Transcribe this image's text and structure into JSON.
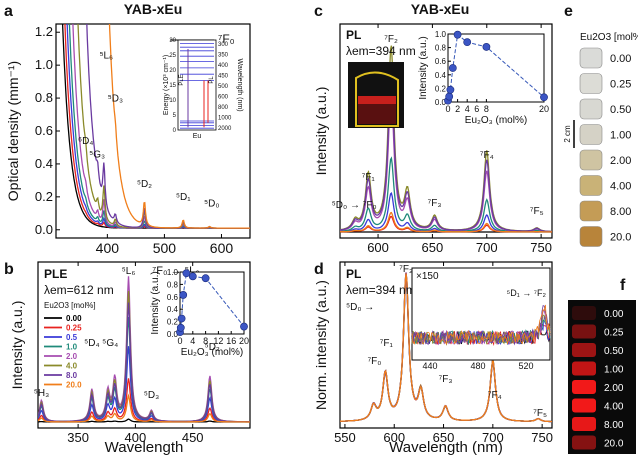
{
  "figure": {
    "material_left": "YAB-xEu",
    "material_right": "YAB-xEu",
    "x_axis_label_left": "Wavelength",
    "x_axis_label_right": "Wavelength (nm)",
    "inset_label_conc_axis": "Eu2O3 (mol%)",
    "panel_e_header": "Eu2O3 [mol%]",
    "panel_e_scale": "2 cm",
    "photo_labels": [
      "0.00",
      "0.25",
      "0.50",
      "1.00",
      "2.00",
      "4.00",
      "8.00",
      "20.0"
    ]
  },
  "panels": {
    "a": {
      "letter": "a"
    },
    "b": {
      "letter": "b",
      "mode": "PLE",
      "lambda_label": "λem=612 nm",
      "legend_title": "Eu2O3 [mol%]"
    },
    "c": {
      "letter": "c",
      "mode": "PL",
      "lambda_label": "λem=394 nm"
    },
    "d": {
      "letter": "d",
      "mode": "PL",
      "lambda_label": "λem=394 nm",
      "zoom_label": "×150"
    },
    "e": {
      "letter": "e"
    },
    "f": {
      "letter": "f"
    }
  },
  "chart_data": [
    {
      "id": "a",
      "type": "line",
      "xlabel": "",
      "ylabel": "Optical density (mm⁻¹)",
      "xlim": [
        310,
        650
      ],
      "ylim": [
        -0.05,
        1.25
      ],
      "xticks": [
        400,
        500,
        600
      ],
      "yticks": [
        0.0,
        0.2,
        0.4,
        0.6,
        0.8,
        1.0,
        1.2
      ],
      "series_colors": [
        "#000000",
        "#e8231f",
        "#3a3ad8",
        "#1f8a7a",
        "#a64cb0",
        "#8a8a2a",
        "#6a3aa0",
        "#f07e1a"
      ],
      "concentrations": [
        "0.00",
        "0.25",
        "0.5",
        "1.0",
        "2.0",
        "4.0",
        "8.0",
        "20.0"
      ],
      "edge_wavelength": [
        318,
        322,
        326,
        330,
        336,
        345,
        360,
        400
      ],
      "peaks": [
        {
          "wavelength": 362,
          "label": "⁶D₄"
        },
        {
          "wavelength": 383,
          "label": "⁵G₃"
        },
        {
          "wavelength": 394,
          "label": "⁵L₆"
        },
        {
          "wavelength": 414,
          "label": "⁵D₃"
        },
        {
          "wavelength": 465,
          "label": "⁵D₂"
        },
        {
          "wavelength": 533,
          "label": "⁵D₁"
        },
        {
          "wavelength": 579,
          "label": "⁵D₀"
        }
      ],
      "annotation": "⁷F₀",
      "inset": {
        "left_axis": "Energy (×10³ cm⁻¹)",
        "right_axis": "Wavelength (nm)",
        "side_labels": [
          "PLE",
          "PL"
        ],
        "ion": "Eu",
        "left_ticks": [
          "0",
          "5",
          "10",
          "15",
          "20",
          "25",
          "30"
        ],
        "right_ticks": [
          "300",
          "350",
          "400",
          "450",
          "500",
          "600",
          "800",
          "1000",
          "2000"
        ]
      }
    },
    {
      "id": "b",
      "type": "line",
      "xlabel": "Wavelength",
      "ylabel": "Intensity (a.u.)",
      "xlim": [
        315,
        500
      ],
      "xticks": [
        350,
        400,
        450
      ],
      "legend": [
        "0.00",
        "0.25",
        "0.5",
        "1.0",
        "2.0",
        "4.0",
        "8.0",
        "20.0"
      ],
      "series_colors": [
        "#000000",
        "#e8231f",
        "#3a3ad8",
        "#1f8a7a",
        "#a64cb0",
        "#8a8a2a",
        "#6a3aa0",
        "#f07e1a"
      ],
      "scale_factors": [
        0.02,
        0.3,
        0.52,
        0.72,
        1.0,
        0.9,
        0.82,
        0.18
      ],
      "peaks": [
        {
          "wavelength": 318,
          "label": "⁵H₃",
          "rel": 0.15
        },
        {
          "wavelength": 362,
          "label": "⁵D₄",
          "rel": 0.22
        },
        {
          "wavelength": 376,
          "label": "⁵G₄",
          "rel": 0.2
        },
        {
          "wavelength": 382,
          "label": "",
          "rel": 0.28
        },
        {
          "wavelength": 394,
          "label": "⁵L₆",
          "rel": 1.0
        },
        {
          "wavelength": 414,
          "label": "⁵D₃",
          "rel": 0.07
        },
        {
          "wavelength": 465,
          "label": "⁵D₂",
          "rel": 0.32
        }
      ],
      "annotation": "⁷F₀ → ⁵L₆",
      "inset": {
        "x": [
          0,
          0.25,
          0.5,
          1,
          2,
          4,
          8,
          20
        ],
        "y": [
          0.03,
          0.1,
          0.25,
          0.63,
          0.98,
          0.93,
          0.9,
          0.12
        ],
        "xlabel": "Eu₂O₃ (mol%)",
        "ylabel": "Intensity (a.u.)",
        "xlim": [
          0,
          20
        ],
        "ylim": [
          0,
          1.0
        ],
        "xticks": [
          0,
          4,
          8,
          12,
          16,
          20
        ],
        "yticks": [
          0.0,
          0.2,
          0.4,
          0.6,
          0.8,
          1.0
        ]
      }
    },
    {
      "id": "c",
      "type": "line",
      "xlabel": "",
      "ylabel": "Intensity (a.u.)",
      "xlim": [
        565,
        760
      ],
      "xticks": [
        600,
        650,
        700,
        750
      ],
      "series_colors": [
        "#000000",
        "#e8231f",
        "#3a3ad8",
        "#1f8a7a",
        "#a64cb0",
        "#8a8a2a",
        "#6a3aa0",
        "#f07e1a"
      ],
      "scale_factors": [
        0.0,
        0.08,
        0.2,
        0.38,
        0.72,
        0.96,
        0.85,
        0.1
      ],
      "peaks": [
        {
          "wavelength": 579,
          "label": "⁵D₀ → ⁷F₀",
          "rel": 0.05
        },
        {
          "wavelength": 591,
          "label": "⁷F₁",
          "rel": 0.3
        },
        {
          "wavelength": 612,
          "label": "⁷F₂",
          "rel": 1.0
        },
        {
          "wavelength": 627,
          "label": "",
          "rel": 0.2
        },
        {
          "wavelength": 652,
          "label": "⁷F₃",
          "rel": 0.08
        },
        {
          "wavelength": 700,
          "label": "⁷F₄",
          "rel": 0.44
        },
        {
          "wavelength": 746,
          "label": "⁷F₅",
          "rel": 0.02
        }
      ],
      "inset": {
        "x": [
          0,
          0.25,
          0.5,
          1,
          2,
          4,
          8,
          20
        ],
        "y": [
          0.02,
          0.08,
          0.18,
          0.5,
          0.99,
          0.88,
          0.81,
          0.07
        ],
        "xlabel": "Eu₂O₃ (mol%)",
        "ylabel": "Intensity (a.u.)",
        "xlim": [
          0,
          20
        ],
        "ylim": [
          0,
          1.0
        ],
        "xticks": [
          0,
          2,
          4,
          6,
          8,
          20
        ],
        "yticks": [
          0.0,
          0.2,
          0.4,
          0.6,
          0.8,
          1.0
        ]
      }
    },
    {
      "id": "d",
      "type": "line",
      "xlabel": "Wavelength (nm)",
      "ylabel": "Norm. intensity (a.u.)",
      "xlim": [
        545,
        760
      ],
      "xticks": [
        550,
        600,
        650,
        700,
        750
      ],
      "series_colors": [
        "#000000",
        "#e8231f",
        "#3a3ad8",
        "#1f8a7a",
        "#a64cb0",
        "#8a8a2a",
        "#6a3aa0",
        "#f07e1a"
      ],
      "peaks": [
        {
          "wavelength": 579,
          "label": "⁷F₀",
          "rel": 0.1
        },
        {
          "wavelength": 591,
          "label": "⁷F₁",
          "rel": 0.32
        },
        {
          "wavelength": 612,
          "label": "⁷F₂",
          "rel": 1.0
        },
        {
          "wavelength": 627,
          "label": "",
          "rel": 0.2
        },
        {
          "wavelength": 652,
          "label": "⁷F₃",
          "rel": 0.1
        },
        {
          "wavelength": 700,
          "label": "⁷F₄",
          "rel": 0.42
        },
        {
          "wavelength": 746,
          "label": "⁷F₅",
          "rel": 0.02
        }
      ],
      "annotation": "⁵D₀ →",
      "inset": {
        "xlim": [
          425,
          540
        ],
        "xticks": [
          440,
          480,
          520
        ],
        "zoom": "×150",
        "label": "⁵D₁ → ⁷F₂",
        "peak": 535
      }
    }
  ]
}
